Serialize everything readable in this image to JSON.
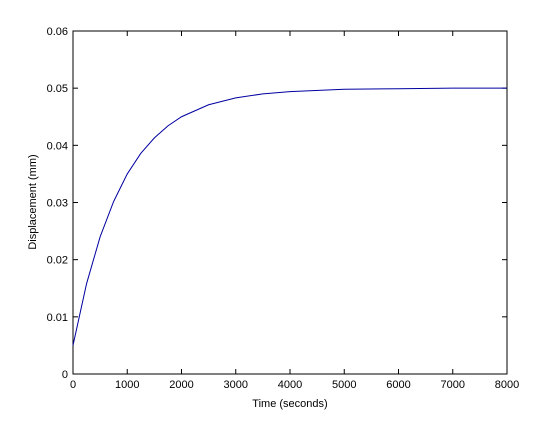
{
  "chart_data": {
    "type": "line",
    "x_label": "Time (seconds)",
    "y_label": "Displacement (mm)",
    "x": [
      0,
      250,
      500,
      750,
      1000,
      1250,
      1500,
      1750,
      2000,
      2500,
      3000,
      3500,
      4000,
      5000,
      6000,
      7000,
      8000
    ],
    "series": [
      {
        "color": "#0000a0",
        "values": [
          0.005,
          0.0158,
          0.024,
          0.0302,
          0.035,
          0.0386,
          0.0413,
          0.0434,
          0.045,
          0.0471,
          0.0483,
          0.049,
          0.0494,
          0.0498,
          0.0499,
          0.05,
          0.05
        ]
      }
    ],
    "xlim": [
      0,
      8000
    ],
    "ylim": [
      0,
      0.06
    ],
    "xticks": [
      0,
      1000,
      2000,
      3000,
      4000,
      5000,
      6000,
      7000,
      8000
    ],
    "yticks": [
      0,
      0.01,
      0.02,
      0.03,
      0.04,
      0.05,
      0.06
    ],
    "grid": false
  }
}
